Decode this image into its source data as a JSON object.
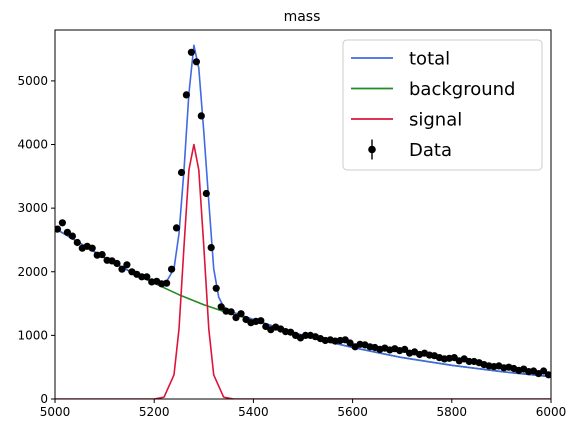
{
  "chart_data": {
    "type": "line",
    "title": "mass",
    "xlabel": "",
    "ylabel": "",
    "xlim": [
      5000,
      6000
    ],
    "ylim": [
      0,
      5800
    ],
    "x_ticks": [
      5000,
      5200,
      5400,
      5600,
      5800,
      6000
    ],
    "y_ticks": [
      0,
      1000,
      2000,
      3000,
      4000,
      5000
    ],
    "grid": false,
    "legend_position": "top-right",
    "colors": {
      "total": "#4169e1",
      "background": "#228b22",
      "signal": "#dc143c",
      "data": "#000000"
    },
    "series": [
      {
        "name": "total",
        "x": [
          5000,
          5050,
          5100,
          5150,
          5200,
          5220,
          5240,
          5250,
          5260,
          5270,
          5280,
          5290,
          5300,
          5310,
          5320,
          5330,
          5340,
          5360,
          5400,
          5450,
          5500,
          5600,
          5700,
          5800,
          5900,
          6000
        ],
        "y": [
          2680,
          2450,
          2220,
          2010,
          1820,
          1780,
          2050,
          2600,
          3600,
          4800,
          5560,
          5200,
          4200,
          3100,
          2050,
          1600,
          1450,
          1360,
          1250,
          1120,
          1000,
          810,
          650,
          530,
          430,
          350
        ]
      },
      {
        "name": "background",
        "x": [
          5000,
          5050,
          5100,
          5150,
          5200,
          5250,
          5300,
          5350,
          5400,
          5450,
          5500,
          5550,
          5600,
          5650,
          5700,
          5750,
          5800,
          5850,
          5900,
          5950,
          6000
        ],
        "y": [
          2680,
          2450,
          2220,
          2010,
          1820,
          1640,
          1480,
          1350,
          1240,
          1120,
          1000,
          900,
          810,
          730,
          650,
          590,
          530,
          480,
          430,
          390,
          350
        ]
      },
      {
        "name": "signal",
        "x": [
          5000,
          5200,
          5220,
          5240,
          5250,
          5260,
          5270,
          5280,
          5290,
          5300,
          5310,
          5320,
          5340,
          5360,
          6000
        ],
        "y": [
          0,
          0,
          30,
          380,
          1100,
          2400,
          3600,
          4000,
          3600,
          2400,
          1100,
          380,
          30,
          0,
          0
        ]
      },
      {
        "name": "Data",
        "x": [
          5005,
          5015,
          5025,
          5035,
          5045,
          5055,
          5065,
          5075,
          5085,
          5095,
          5105,
          5115,
          5125,
          5135,
          5145,
          5155,
          5165,
          5175,
          5185,
          5195,
          5205,
          5215,
          5225,
          5235,
          5245,
          5255,
          5265,
          5275,
          5285,
          5295,
          5305,
          5315,
          5325,
          5335,
          5345,
          5355,
          5365,
          5375,
          5385,
          5395,
          5405,
          5415,
          5425,
          5435,
          5445,
          5455,
          5465,
          5475,
          5485,
          5495,
          5505,
          5515,
          5525,
          5535,
          5545,
          5555,
          5565,
          5575,
          5585,
          5595,
          5605,
          5615,
          5625,
          5635,
          5645,
          5655,
          5665,
          5675,
          5685,
          5695,
          5705,
          5715,
          5725,
          5735,
          5745,
          5755,
          5765,
          5775,
          5785,
          5795,
          5805,
          5815,
          5825,
          5835,
          5845,
          5855,
          5865,
          5875,
          5885,
          5895,
          5905,
          5915,
          5925,
          5935,
          5945,
          5955,
          5965,
          5975,
          5985,
          5995
        ],
        "y": [
          2670,
          2770,
          2620,
          2560,
          2460,
          2370,
          2400,
          2370,
          2260,
          2270,
          2180,
          2170,
          2130,
          2040,
          2110,
          2000,
          1960,
          1920,
          1920,
          1840,
          1850,
          1810,
          1820,
          2040,
          2690,
          3560,
          4780,
          5450,
          5300,
          4450,
          3230,
          2380,
          1740,
          1450,
          1380,
          1370,
          1280,
          1340,
          1250,
          1200,
          1220,
          1230,
          1140,
          1090,
          1130,
          1100,
          1060,
          1050,
          1000,
          960,
          1000,
          1000,
          980,
          950,
          920,
          930,
          910,
          920,
          930,
          880,
          820,
          860,
          850,
          820,
          810,
          780,
          800,
          770,
          790,
          760,
          780,
          720,
          740,
          700,
          720,
          690,
          680,
          650,
          630,
          640,
          650,
          600,
          630,
          590,
          590,
          570,
          540,
          520,
          510,
          520,
          490,
          500,
          480,
          450,
          470,
          430,
          440,
          400,
          440,
          380
        ]
      }
    ]
  }
}
